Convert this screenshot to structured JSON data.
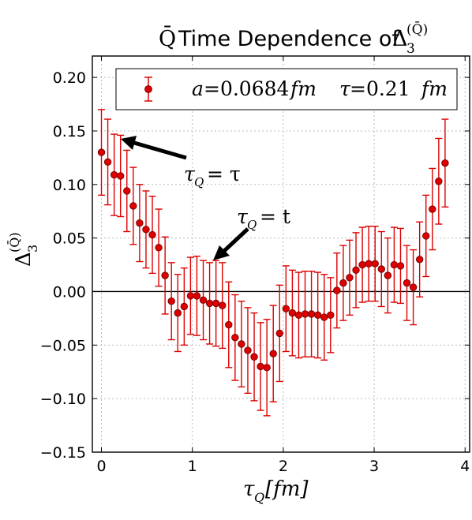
{
  "chart_data": {
    "type": "scatter",
    "title_prefix": "Time Dependence of",
    "title_math_symbol": "Q̄",
    "title_math_delta": "Δ",
    "title_math_sub": "3",
    "title_math_sup": "(Q̄)",
    "xlabel_main": "τ",
    "xlabel_sub": "Q",
    "xlabel_unit": "[fm]",
    "ylabel_main": "Δ",
    "ylabel_sub": "3",
    "ylabel_sup": "(Q̄)",
    "xlim": [
      -0.1,
      4.05
    ],
    "ylim": [
      -0.15,
      0.22
    ],
    "xticks": [
      0,
      1,
      2,
      3,
      4
    ],
    "xtick_labels": [
      "0",
      "1",
      "2",
      "3",
      "4"
    ],
    "yticks": [
      -0.15,
      -0.1,
      -0.05,
      0.0,
      0.05,
      0.1,
      0.15,
      0.2
    ],
    "ytick_labels": [
      "−0.15",
      "−0.10",
      "−0.05",
      "0.00",
      "0.05",
      "0.10",
      "0.15",
      "0.20"
    ],
    "grid": true,
    "horizontal_line_y": 0.0,
    "legend_placement": "top-right",
    "colors": {
      "series": "#dd0000",
      "marker_edge": "#660000",
      "zero_line": "#000000",
      "grid": "#bbbbbb"
    },
    "series": [
      {
        "name": "a = 0.0684 fm   τ = 0.21 fm",
        "x": [
          0.0,
          0.07,
          0.14,
          0.21,
          0.28,
          0.35,
          0.42,
          0.49,
          0.56,
          0.63,
          0.7,
          0.77,
          0.84,
          0.91,
          0.98,
          1.05,
          1.12,
          1.19,
          1.26,
          1.33,
          1.4,
          1.47,
          1.54,
          1.61,
          1.68,
          1.75,
          1.82,
          1.89,
          1.96,
          2.03,
          2.1,
          2.17,
          2.24,
          2.31,
          2.38,
          2.45,
          2.52,
          2.59,
          2.66,
          2.73,
          2.8,
          2.87,
          2.94,
          3.01,
          3.08,
          3.15,
          3.22,
          3.29,
          3.36,
          3.43,
          3.5,
          3.57,
          3.64,
          3.71,
          3.78
        ],
        "y": [
          0.13,
          0.121,
          0.109,
          0.108,
          0.094,
          0.08,
          0.064,
          0.058,
          0.053,
          0.041,
          0.015,
          -0.009,
          -0.02,
          -0.014,
          -0.004,
          -0.004,
          -0.008,
          -0.011,
          -0.011,
          -0.013,
          -0.031,
          -0.043,
          -0.049,
          -0.055,
          -0.061,
          -0.07,
          -0.071,
          -0.058,
          -0.039,
          -0.016,
          -0.02,
          -0.022,
          -0.021,
          -0.021,
          -0.022,
          -0.024,
          -0.022,
          0.001,
          0.008,
          0.013,
          0.02,
          0.025,
          0.026,
          0.026,
          0.021,
          0.015,
          0.025,
          0.024,
          0.008,
          0.004,
          0.03,
          0.052,
          0.077,
          0.103,
          0.12
        ],
        "err": [
          0.04,
          0.04,
          0.038,
          0.038,
          0.038,
          0.036,
          0.036,
          0.036,
          0.036,
          0.036,
          0.036,
          0.036,
          0.036,
          0.036,
          0.036,
          0.037,
          0.037,
          0.038,
          0.04,
          0.04,
          0.04,
          0.04,
          0.04,
          0.04,
          0.041,
          0.041,
          0.045,
          0.045,
          0.045,
          0.04,
          0.04,
          0.04,
          0.04,
          0.04,
          0.04,
          0.04,
          0.035,
          0.035,
          0.035,
          0.035,
          0.035,
          0.035,
          0.035,
          0.035,
          0.035,
          0.035,
          0.035,
          0.035,
          0.035,
          0.035,
          0.035,
          0.038,
          0.038,
          0.04,
          0.041
        ]
      }
    ],
    "legend": {
      "label_a": "a",
      "label_a_value": "=0.0684",
      "label_tau": "τ",
      "label_tau_value": "=0.21",
      "unit": "fm"
    },
    "annotations": [
      {
        "text_main": "τ",
        "text_sub": "Q",
        "text_rest": "= τ",
        "point_to": [
          0.23,
          0.147
        ]
      },
      {
        "text_main": "τ",
        "text_sub": "Q",
        "text_rest": "= t",
        "point_to": [
          1.22,
          0.031
        ]
      }
    ]
  }
}
